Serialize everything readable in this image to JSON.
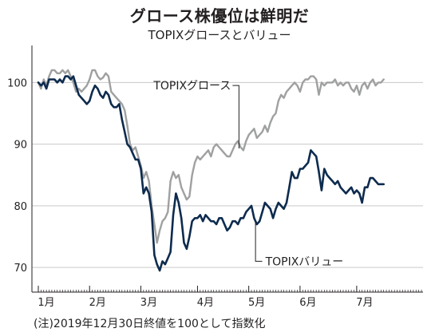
{
  "title": "グロース株優位は鮮明だ",
  "subtitle": "TOPIXグロースとバリュー",
  "note": "(注)2019年12月30日終値を100として指数化",
  "chart_data": {
    "type": "line",
    "ylim": [
      66,
      106
    ],
    "yticks": [
      70,
      80,
      90,
      100
    ],
    "xlim": [
      0,
      142
    ],
    "month_ticks": [
      {
        "label": "1月",
        "x": 0
      },
      {
        "label": "2月",
        "x": 19
      },
      {
        "label": "3月",
        "x": 38
      },
      {
        "label": "4月",
        "x": 59
      },
      {
        "label": "5月",
        "x": 78
      },
      {
        "label": "6月",
        "x": 97
      },
      {
        "label": "7月",
        "x": 118
      }
    ],
    "series": [
      {
        "name": "TOPIXグロース",
        "color": "#9fa0a0",
        "label_at": [
          72,
          99
        ],
        "values": [
          [
            0,
            100.0
          ],
          [
            1,
            99.0
          ],
          [
            2,
            100.5
          ],
          [
            3,
            99.5
          ],
          [
            4,
            101.0
          ],
          [
            5,
            102.0
          ],
          [
            6,
            102.0
          ],
          [
            7,
            101.5
          ],
          [
            8,
            101.5
          ],
          [
            9,
            102.0
          ],
          [
            10,
            101.5
          ],
          [
            11,
            102.0
          ],
          [
            12,
            101.0
          ],
          [
            13,
            100.0
          ],
          [
            14,
            98.5
          ],
          [
            15,
            99.0
          ],
          [
            16,
            98.5
          ],
          [
            17,
            99.0
          ],
          [
            18,
            99.5
          ],
          [
            19,
            100.5
          ],
          [
            20,
            102.0
          ],
          [
            21,
            102.0
          ],
          [
            22,
            101.0
          ],
          [
            23,
            100.5
          ],
          [
            24,
            100.8
          ],
          [
            25,
            101.5
          ],
          [
            26,
            101.0
          ],
          [
            27,
            98.5
          ],
          [
            28,
            98.0
          ],
          [
            29,
            97.5
          ],
          [
            30,
            97.0
          ],
          [
            31,
            96.5
          ],
          [
            32,
            95.5
          ],
          [
            33,
            93.0
          ],
          [
            34,
            90.0
          ],
          [
            35,
            89.0
          ],
          [
            36,
            89.5
          ],
          [
            37,
            88.0
          ],
          [
            38,
            86.5
          ],
          [
            39,
            84.5
          ],
          [
            40,
            85.5
          ],
          [
            41,
            84.0
          ],
          [
            42,
            80.0
          ],
          [
            43,
            77.0
          ],
          [
            44,
            74.0
          ],
          [
            45,
            76.0
          ],
          [
            46,
            77.5
          ],
          [
            47,
            78.0
          ],
          [
            48,
            79.0
          ],
          [
            49,
            84.0
          ],
          [
            50,
            85.5
          ],
          [
            51,
            84.5
          ],
          [
            52,
            85.0
          ],
          [
            53,
            83.0
          ],
          [
            54,
            82.0
          ],
          [
            55,
            81.0
          ],
          [
            56,
            81.5
          ],
          [
            57,
            85.0
          ],
          [
            58,
            87.0
          ],
          [
            59,
            88.0
          ],
          [
            60,
            87.5
          ],
          [
            61,
            88.0
          ],
          [
            62,
            88.5
          ],
          [
            63,
            89.0
          ],
          [
            64,
            88.0
          ],
          [
            65,
            89.5
          ],
          [
            66,
            90.0
          ],
          [
            67,
            89.5
          ],
          [
            68,
            89.0
          ],
          [
            69,
            88.5
          ],
          [
            70,
            88.0
          ],
          [
            71,
            88.0
          ],
          [
            72,
            89.0
          ],
          [
            73,
            90.0
          ],
          [
            74,
            90.5
          ],
          [
            75,
            89.5
          ],
          [
            76,
            89.0
          ],
          [
            77,
            90.5
          ],
          [
            78,
            91.5
          ],
          [
            79,
            92.0
          ],
          [
            80,
            92.5
          ],
          [
            81,
            91.0
          ],
          [
            82,
            91.5
          ],
          [
            83,
            92.0
          ],
          [
            84,
            93.0
          ],
          [
            85,
            92.0
          ],
          [
            86,
            93.5
          ],
          [
            87,
            94.5
          ],
          [
            88,
            95.0
          ],
          [
            89,
            97.0
          ],
          [
            90,
            98.0
          ],
          [
            91,
            97.5
          ],
          [
            92,
            98.5
          ],
          [
            93,
            99.0
          ],
          [
            94,
            99.5
          ],
          [
            95,
            100.0
          ],
          [
            96,
            99.5
          ],
          [
            97,
            98.5
          ],
          [
            98,
            100.0
          ],
          [
            99,
            100.5
          ],
          [
            100,
            100.5
          ],
          [
            101,
            101.0
          ],
          [
            102,
            101.0
          ],
          [
            103,
            100.5
          ],
          [
            104,
            98.0
          ],
          [
            105,
            100.0
          ],
          [
            106,
            99.5
          ],
          [
            107,
            100.0
          ],
          [
            108,
            100.0
          ],
          [
            109,
            100.0
          ],
          [
            110,
            100.5
          ],
          [
            111,
            99.5
          ],
          [
            112,
            100.0
          ],
          [
            113,
            99.5
          ],
          [
            114,
            100.0
          ],
          [
            115,
            100.0
          ],
          [
            116,
            99.0
          ],
          [
            117,
            98.5
          ],
          [
            118,
            99.5
          ],
          [
            119,
            98.0
          ],
          [
            120,
            99.5
          ],
          [
            121,
            100.0
          ],
          [
            122,
            99.0
          ],
          [
            123,
            100.0
          ],
          [
            124,
            100.5
          ],
          [
            125,
            99.5
          ],
          [
            126,
            100.0
          ],
          [
            127,
            100.0
          ],
          [
            128,
            100.5
          ]
        ]
      },
      {
        "name": "TOPIXバリュー",
        "color": "#0d2b4e",
        "label_at": [
          83,
          71
        ],
        "values": [
          [
            0,
            100.0
          ],
          [
            1,
            99.5
          ],
          [
            2,
            100.0
          ],
          [
            3,
            99.0
          ],
          [
            4,
            100.5
          ],
          [
            5,
            100.5
          ],
          [
            6,
            100.5
          ],
          [
            7,
            100.0
          ],
          [
            8,
            100.5
          ],
          [
            9,
            100.0
          ],
          [
            10,
            101.0
          ],
          [
            11,
            101.0
          ],
          [
            12,
            100.5
          ],
          [
            13,
            101.0
          ],
          [
            14,
            99.5
          ],
          [
            15,
            98.0
          ],
          [
            16,
            97.5
          ],
          [
            17,
            97.0
          ],
          [
            18,
            96.5
          ],
          [
            19,
            97.0
          ],
          [
            20,
            98.5
          ],
          [
            21,
            99.5
          ],
          [
            22,
            99.0
          ],
          [
            23,
            98.0
          ],
          [
            24,
            97.5
          ],
          [
            25,
            98.5
          ],
          [
            26,
            98.0
          ],
          [
            27,
            96.5
          ],
          [
            28,
            96.0
          ],
          [
            29,
            96.0
          ],
          [
            30,
            96.5
          ],
          [
            31,
            94.0
          ],
          [
            32,
            92.0
          ],
          [
            33,
            90.0
          ],
          [
            34,
            89.5
          ],
          [
            35,
            88.5
          ],
          [
            36,
            87.5
          ],
          [
            37,
            87.5
          ],
          [
            38,
            86.0
          ],
          [
            39,
            82.0
          ],
          [
            40,
            83.0
          ],
          [
            41,
            82.0
          ],
          [
            42,
            79.0
          ],
          [
            43,
            72.0
          ],
          [
            44,
            70.5
          ],
          [
            45,
            69.5
          ],
          [
            46,
            71.0
          ],
          [
            47,
            70.5
          ],
          [
            48,
            71.5
          ],
          [
            49,
            72.5
          ],
          [
            50,
            78.5
          ],
          [
            51,
            82.0
          ],
          [
            52,
            80.5
          ],
          [
            53,
            78.0
          ],
          [
            54,
            74.0
          ],
          [
            55,
            73.0
          ],
          [
            56,
            75.0
          ],
          [
            57,
            77.5
          ],
          [
            58,
            78.0
          ],
          [
            59,
            78.0
          ],
          [
            60,
            78.5
          ],
          [
            61,
            77.5
          ],
          [
            62,
            78.5
          ],
          [
            63,
            78.0
          ],
          [
            64,
            77.5
          ],
          [
            65,
            77.5
          ],
          [
            66,
            77.0
          ],
          [
            67,
            78.0
          ],
          [
            68,
            78.0
          ],
          [
            69,
            77.0
          ],
          [
            70,
            76.0
          ],
          [
            71,
            76.5
          ],
          [
            72,
            77.5
          ],
          [
            73,
            77.5
          ],
          [
            74,
            77.0
          ],
          [
            75,
            78.0
          ],
          [
            76,
            78.0
          ],
          [
            77,
            79.0
          ],
          [
            78,
            79.5
          ],
          [
            79,
            80.0
          ],
          [
            80,
            78.0
          ],
          [
            81,
            77.0
          ],
          [
            82,
            77.5
          ],
          [
            83,
            79.0
          ],
          [
            84,
            80.5
          ],
          [
            85,
            80.0
          ],
          [
            86,
            79.5
          ],
          [
            87,
            78.0
          ],
          [
            88,
            79.5
          ],
          [
            89,
            80.5
          ],
          [
            90,
            80.0
          ],
          [
            91,
            79.5
          ],
          [
            92,
            80.5
          ],
          [
            93,
            83.0
          ],
          [
            94,
            85.5
          ],
          [
            95,
            84.5
          ],
          [
            96,
            84.5
          ],
          [
            97,
            86.0
          ],
          [
            98,
            86.0
          ],
          [
            99,
            86.5
          ],
          [
            100,
            87.0
          ],
          [
            101,
            89.0
          ],
          [
            102,
            88.5
          ],
          [
            103,
            88.0
          ],
          [
            104,
            85.5
          ],
          [
            105,
            82.5
          ],
          [
            106,
            86.0
          ],
          [
            107,
            85.0
          ],
          [
            108,
            84.5
          ],
          [
            109,
            84.0
          ],
          [
            110,
            83.5
          ],
          [
            111,
            84.0
          ],
          [
            112,
            83.0
          ],
          [
            113,
            82.5
          ],
          [
            114,
            82.0
          ],
          [
            115,
            82.5
          ],
          [
            116,
            83.0
          ],
          [
            117,
            82.0
          ],
          [
            118,
            82.5
          ],
          [
            119,
            82.0
          ],
          [
            120,
            80.5
          ],
          [
            121,
            83.0
          ],
          [
            122,
            83.0
          ],
          [
            123,
            84.5
          ],
          [
            124,
            84.5
          ],
          [
            125,
            84.0
          ],
          [
            126,
            83.5
          ],
          [
            127,
            83.5
          ],
          [
            128,
            83.5
          ]
        ]
      }
    ]
  }
}
